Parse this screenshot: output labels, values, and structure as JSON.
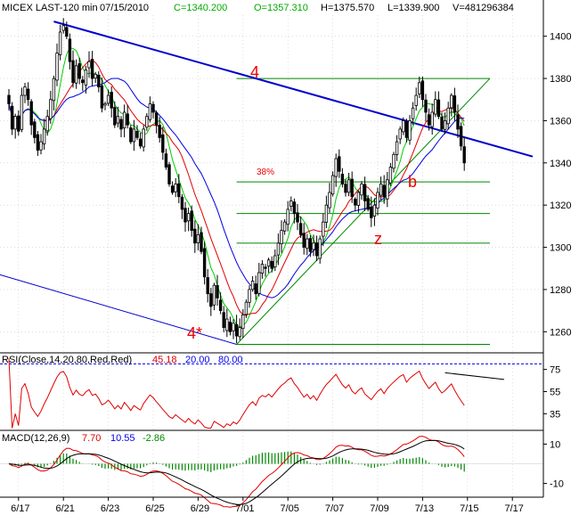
{
  "header": {
    "symbol": "MICEX LAST-120 min",
    "date": "07/15/2010",
    "close": "C=1340.200",
    "open": "O=1357.310",
    "high": "H=1375.570",
    "low": "L=1339.900",
    "volume": "V=481296384"
  },
  "colors": {
    "background": "#ffffff",
    "candle": "#000000",
    "ma_green": "#00cc00",
    "ma_red": "#e00000",
    "ma_blue": "#0000e0",
    "trendline": "#0000cc",
    "fib": "#008800",
    "annotation": "#ee0000",
    "rsi_ref": "#0000ee",
    "grid": "#c8c8c8"
  },
  "chart_data": [
    {
      "type": "candlestick",
      "panel": "price",
      "ylim": [
        1250,
        1410
      ],
      "y_ticks": [
        "1400",
        "1380",
        "1360",
        "1340",
        "1320",
        "1300",
        "1280",
        "1260"
      ],
      "x_ticks": [
        "6/17",
        "6/21",
        "6/23",
        "6/25",
        "6/29",
        "7/01",
        "7/05",
        "7/07",
        "7/09",
        "7/13",
        "7/15",
        "7/17"
      ],
      "x_tick_index": [
        3,
        17,
        31,
        45,
        59,
        73,
        87,
        101,
        115,
        129,
        143,
        157
      ],
      "close": [
        1368,
        1356,
        1362,
        1355,
        1372,
        1376,
        1370,
        1358,
        1352,
        1346,
        1350,
        1356,
        1362,
        1370,
        1380,
        1392,
        1402,
        1405,
        1400,
        1388,
        1378,
        1386,
        1380,
        1378,
        1384,
        1388,
        1380,
        1382,
        1376,
        1366,
        1368,
        1372,
        1366,
        1358,
        1362,
        1356,
        1364,
        1358,
        1350,
        1356,
        1352,
        1348,
        1356,
        1362,
        1368,
        1364,
        1358,
        1352,
        1345,
        1338,
        1330,
        1326,
        1330,
        1324,
        1318,
        1312,
        1316,
        1308,
        1302,
        1306,
        1298,
        1286,
        1278,
        1272,
        1282,
        1276,
        1270,
        1262,
        1266,
        1260,
        1264,
        1258,
        1262,
        1268,
        1274,
        1280,
        1284,
        1278,
        1288,
        1292,
        1290,
        1294,
        1290,
        1296,
        1302,
        1308,
        1312,
        1318,
        1322,
        1316,
        1312,
        1306,
        1300,
        1304,
        1298,
        1302,
        1296,
        1304,
        1312,
        1320,
        1326,
        1334,
        1342,
        1336,
        1330,
        1326,
        1332,
        1324,
        1320,
        1326,
        1330,
        1322,
        1318,
        1314,
        1320,
        1326,
        1330,
        1324,
        1332,
        1338,
        1344,
        1350,
        1356,
        1360,
        1352,
        1360,
        1366,
        1372,
        1378,
        1370,
        1364,
        1358,
        1364,
        1370,
        1362,
        1356,
        1360,
        1366,
        1372,
        1364,
        1356,
        1348,
        1340
      ],
      "labels": [
        "4",
        "38%",
        "b",
        "z",
        "4*"
      ]
    },
    {
      "type": "line",
      "panel": "rsi",
      "title": "RSI(Close,14,20,80,Red,Red)",
      "last_value": "45.18",
      "levels": [
        "20.00",
        "80.00"
      ],
      "ylim": [
        20,
        90
      ],
      "y_ticks": [
        "75",
        "55",
        "35"
      ]
    },
    {
      "type": "line",
      "panel": "macd",
      "title": "MACD(12,26,9)",
      "values": [
        "7.70",
        "10.55",
        "-2.86"
      ],
      "ylim": [
        -17,
        17
      ],
      "y_ticks": [
        "10",
        "-10"
      ]
    }
  ]
}
